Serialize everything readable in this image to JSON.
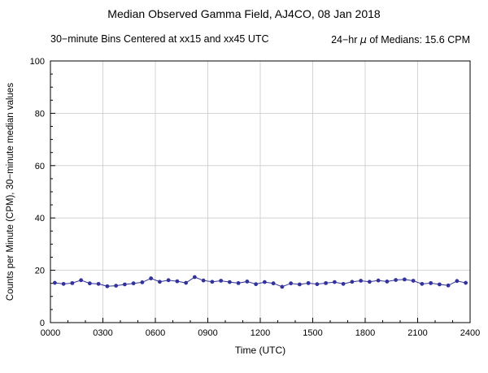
{
  "chart_data": {
    "type": "line",
    "title": "Median Observed Gamma Field, AJ4CO, 08 Jan 2018",
    "subtitle_left": "30−minute Bins Centered at xx15 and xx45 UTC",
    "subtitle_right_prefix": "24−hr ",
    "subtitle_right_mu": "μ",
    "subtitle_right_suffix": " of Medians: 15.6 CPM",
    "mean_cpm": 15.6,
    "xlabel": "Time (UTC)",
    "ylabel": "Counts per Minute (CPM), 30−minute median values",
    "xlim": [
      0,
      1440
    ],
    "ylim": [
      0,
      100
    ],
    "x_major_ticks": [
      0,
      180,
      360,
      540,
      720,
      900,
      1080,
      1260,
      1440
    ],
    "x_tick_labels": [
      "0000",
      "0300",
      "0600",
      "0900",
      "1200",
      "1500",
      "1800",
      "2100",
      "2400"
    ],
    "y_major_ticks": [
      0,
      20,
      40,
      60,
      80,
      100
    ],
    "y_tick_labels": [
      "0",
      "20",
      "40",
      "60",
      "80",
      "100"
    ],
    "x_minor_step": 60,
    "y_minor_step": 5,
    "grid": true,
    "grid_color": "#c9c9c9",
    "line_color": "#32329b",
    "x_minutes": [
      15,
      45,
      75,
      105,
      135,
      165,
      195,
      225,
      255,
      285,
      315,
      345,
      375,
      405,
      435,
      465,
      495,
      525,
      555,
      585,
      615,
      645,
      675,
      705,
      735,
      765,
      795,
      825,
      855,
      885,
      915,
      945,
      975,
      1005,
      1035,
      1065,
      1095,
      1125,
      1155,
      1185,
      1215,
      1245,
      1275,
      1305,
      1335,
      1365,
      1395,
      1425
    ],
    "values": [
      15.2,
      14.8,
      15.1,
      16.2,
      15.0,
      14.8,
      13.9,
      14.1,
      14.6,
      15.0,
      15.4,
      16.9,
      15.6,
      16.2,
      15.8,
      15.2,
      17.4,
      16.1,
      15.6,
      16.0,
      15.5,
      15.1,
      15.7,
      14.7,
      15.5,
      15.0,
      13.7,
      15.0,
      14.6,
      15.1,
      14.7,
      15.1,
      15.5,
      14.8,
      15.6,
      16.0,
      15.6,
      16.1,
      15.7,
      16.3,
      16.5,
      16.0,
      14.8,
      15.1,
      14.6,
      14.2,
      15.9,
      15.2
    ]
  }
}
